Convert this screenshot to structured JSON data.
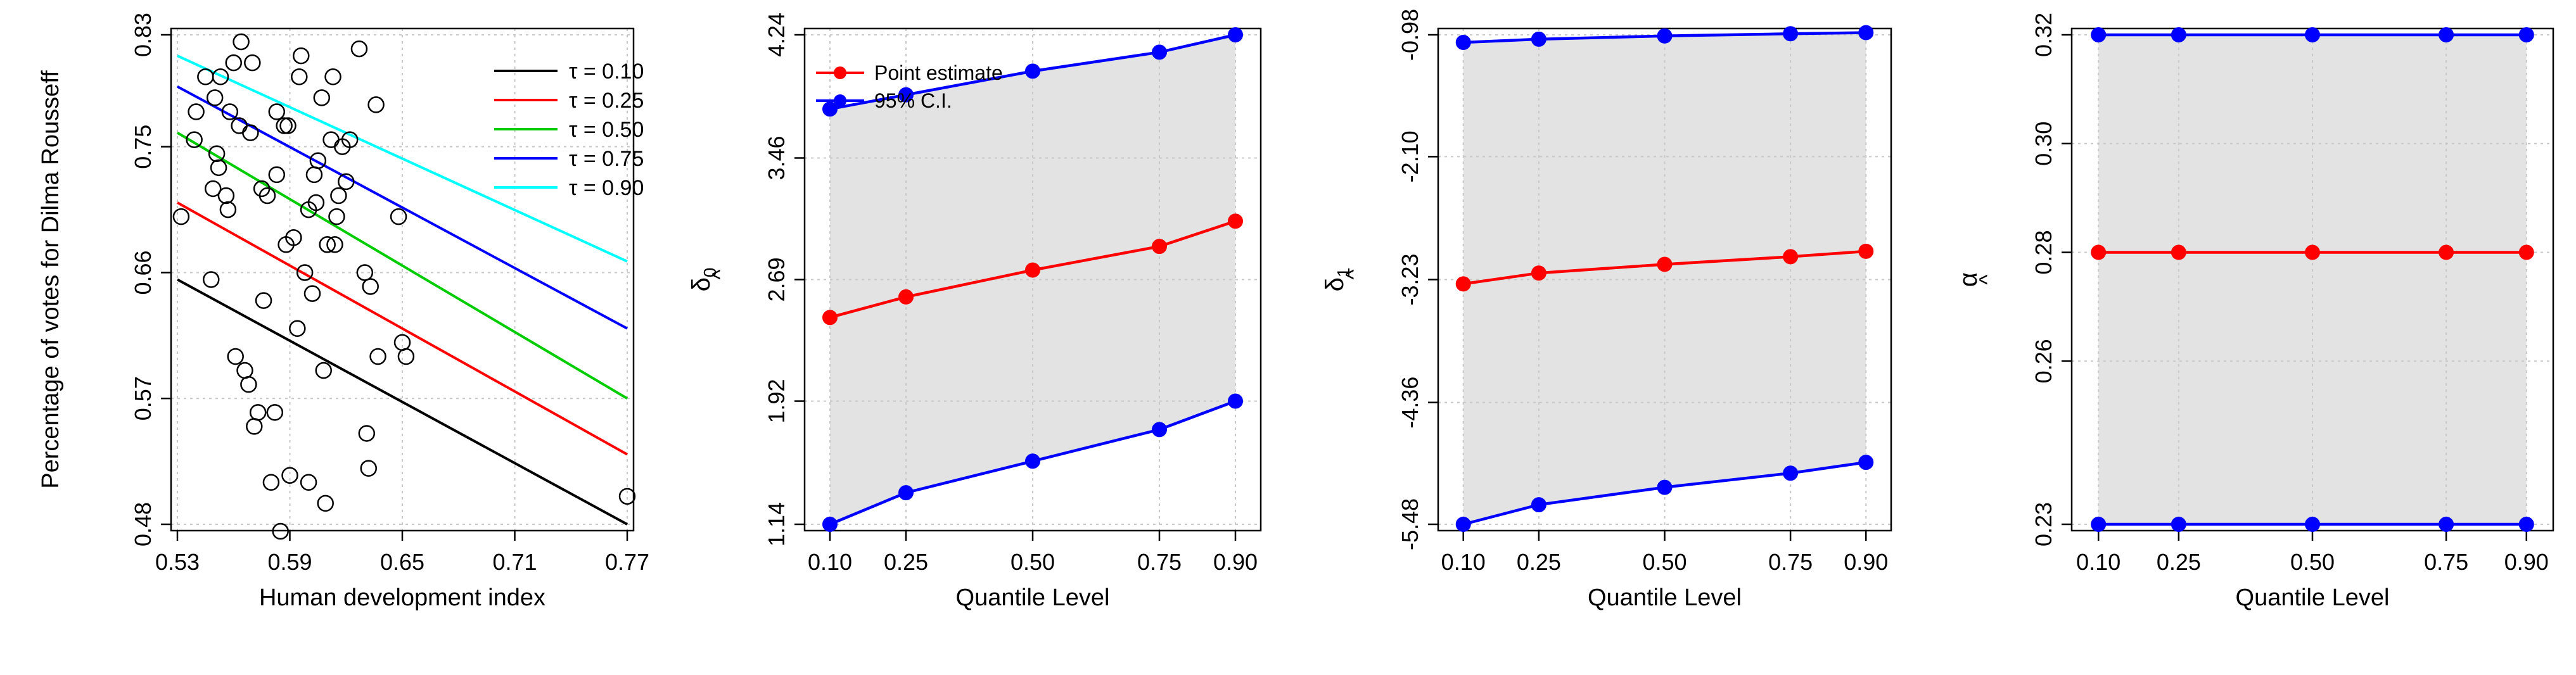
{
  "chart_data": [
    {
      "type": "scatter",
      "title": "",
      "xlabel": "Human development index",
      "ylabel": "Percentage of votes for Dilma Rousseff",
      "xlim": [
        0.53,
        0.77
      ],
      "ylim": [
        0.48,
        0.83
      ],
      "xticks": [
        "0.53",
        "0.59",
        "0.65",
        "0.71",
        "0.77"
      ],
      "yticks": [
        "0.48",
        "0.57",
        "0.66",
        "0.75",
        "0.83"
      ],
      "points": [
        [
          0.532,
          0.7
        ],
        [
          0.539,
          0.755
        ],
        [
          0.54,
          0.775
        ],
        [
          0.545,
          0.8
        ],
        [
          0.548,
          0.655
        ],
        [
          0.549,
          0.72
        ],
        [
          0.55,
          0.785
        ],
        [
          0.551,
          0.745
        ],
        [
          0.552,
          0.735
        ],
        [
          0.553,
          0.8
        ],
        [
          0.556,
          0.715
        ],
        [
          0.557,
          0.705
        ],
        [
          0.558,
          0.775
        ],
        [
          0.56,
          0.81
        ],
        [
          0.561,
          0.6
        ],
        [
          0.563,
          0.765
        ],
        [
          0.564,
          0.825
        ],
        [
          0.566,
          0.59
        ],
        [
          0.568,
          0.58
        ],
        [
          0.569,
          0.76
        ],
        [
          0.57,
          0.81
        ],
        [
          0.571,
          0.55
        ],
        [
          0.573,
          0.56
        ],
        [
          0.575,
          0.72
        ],
        [
          0.576,
          0.64
        ],
        [
          0.578,
          0.715
        ],
        [
          0.58,
          0.51
        ],
        [
          0.582,
          0.56
        ],
        [
          0.583,
          0.73
        ],
        [
          0.583,
          0.775
        ],
        [
          0.585,
          0.475
        ],
        [
          0.587,
          0.765
        ],
        [
          0.588,
          0.68
        ],
        [
          0.589,
          0.765
        ],
        [
          0.59,
          0.515
        ],
        [
          0.592,
          0.685
        ],
        [
          0.594,
          0.62
        ],
        [
          0.595,
          0.8
        ],
        [
          0.596,
          0.815
        ],
        [
          0.598,
          0.66
        ],
        [
          0.6,
          0.705
        ],
        [
          0.6,
          0.51
        ],
        [
          0.602,
          0.645
        ],
        [
          0.603,
          0.73
        ],
        [
          0.604,
          0.71
        ],
        [
          0.605,
          0.74
        ],
        [
          0.607,
          0.785
        ],
        [
          0.608,
          0.59
        ],
        [
          0.609,
          0.495
        ],
        [
          0.61,
          0.68
        ],
        [
          0.612,
          0.755
        ],
        [
          0.613,
          0.8
        ],
        [
          0.614,
          0.68
        ],
        [
          0.615,
          0.7
        ],
        [
          0.616,
          0.715
        ],
        [
          0.618,
          0.75
        ],
        [
          0.62,
          0.725
        ],
        [
          0.622,
          0.755
        ],
        [
          0.627,
          0.82
        ],
        [
          0.63,
          0.66
        ],
        [
          0.631,
          0.545
        ],
        [
          0.632,
          0.52
        ],
        [
          0.633,
          0.65
        ],
        [
          0.636,
          0.78
        ],
        [
          0.637,
          0.6
        ],
        [
          0.648,
          0.7
        ],
        [
          0.65,
          0.61
        ],
        [
          0.652,
          0.6
        ],
        [
          0.77,
          0.5
        ]
      ],
      "series": [
        {
          "name": "τ = 0.10",
          "color": "#000000",
          "x": [
            0.53,
            0.77
          ],
          "y": [
            0.655,
            0.48
          ]
        },
        {
          "name": "τ = 0.25",
          "color": "#ff0000",
          "x": [
            0.53,
            0.77
          ],
          "y": [
            0.71,
            0.53
          ]
        },
        {
          "name": "τ = 0.50",
          "color": "#00cc00",
          "x": [
            0.53,
            0.77
          ],
          "y": [
            0.76,
            0.57
          ]
        },
        {
          "name": "τ = 0.75",
          "color": "#0000ff",
          "x": [
            0.53,
            0.77
          ],
          "y": [
            0.793,
            0.62
          ]
        },
        {
          "name": "τ = 0.90",
          "color": "#00ffff",
          "x": [
            0.53,
            0.77
          ],
          "y": [
            0.815,
            0.668
          ]
        }
      ],
      "legend_position": "top-right"
    },
    {
      "type": "line",
      "xlabel": "Quantile Level",
      "ylabel": "δ0",
      "ylabel_base": "δ",
      "ylabel_sub": "0",
      "xlim": [
        0.05,
        0.95
      ],
      "ylim": [
        1.14,
        4.24
      ],
      "xticks": [
        "0.10",
        "0.25",
        "0.50",
        "0.75",
        "0.90"
      ],
      "yticks": [
        "1.14",
        "1.92",
        "2.69",
        "3.46",
        "4.24"
      ],
      "x": [
        0.1,
        0.25,
        0.5,
        0.75,
        0.9
      ],
      "point_estimate": [
        2.45,
        2.58,
        2.75,
        2.9,
        3.06
      ],
      "ci_lower": [
        1.14,
        1.34,
        1.54,
        1.74,
        1.92
      ],
      "ci_upper": [
        3.77,
        3.86,
        4.01,
        4.13,
        4.24
      ],
      "legend": [
        "Point estimate",
        "95% C.I."
      ],
      "legend_position": "top-left"
    },
    {
      "type": "line",
      "xlabel": "Quantile Level",
      "ylabel": "δ1",
      "ylabel_base": "δ",
      "ylabel_sub": "1",
      "xlim": [
        0.05,
        0.95
      ],
      "ylim": [
        -5.48,
        -0.98
      ],
      "xticks": [
        "0.10",
        "0.25",
        "0.50",
        "0.75",
        "0.90"
      ],
      "yticks": [
        "-5.48",
        "-4.36",
        "-3.23",
        "-2.10",
        "-0.98"
      ],
      "x": [
        0.1,
        0.25,
        0.5,
        0.75,
        0.9
      ],
      "point_estimate": [
        -3.27,
        -3.17,
        -3.09,
        -3.02,
        -2.97
      ],
      "ci_lower": [
        -5.48,
        -5.3,
        -5.14,
        -5.01,
        -4.91
      ],
      "ci_upper": [
        -1.05,
        -1.02,
        -0.99,
        -0.97,
        -0.96
      ]
    },
    {
      "type": "line",
      "xlabel": "Quantile Level",
      "ylabel": "α",
      "ylabel_base": "α",
      "ylabel_sub": "",
      "xlim": [
        0.05,
        0.95
      ],
      "ylim": [
        0.23,
        0.32
      ],
      "xticks": [
        "0.10",
        "0.25",
        "0.50",
        "0.75",
        "0.90"
      ],
      "yticks": [
        "0.23",
        "0.26",
        "0.28",
        "0.30",
        "0.32"
      ],
      "ytick_values": [
        0.23,
        0.26,
        0.28,
        0.3,
        0.32
      ],
      "x": [
        0.1,
        0.25,
        0.5,
        0.75,
        0.9
      ],
      "point_estimate": [
        0.28,
        0.28,
        0.28,
        0.28,
        0.28
      ],
      "ci_lower": [
        0.23,
        0.23,
        0.23,
        0.23,
        0.23
      ],
      "ci_upper": [
        0.32,
        0.32,
        0.32,
        0.32,
        0.32
      ]
    }
  ],
  "colors": {
    "point_estimate": "#ff0000",
    "ci": "#0000ff",
    "band": "#e3e3e3",
    "grid": "#c8c8c8"
  }
}
